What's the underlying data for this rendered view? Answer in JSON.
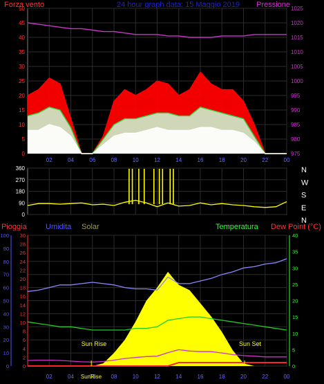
{
  "header": {
    "left_label": "Forza vento",
    "title": "24 hour graph data:  15 Maggio 2019",
    "right_label": "Pressione"
  },
  "colors": {
    "background": "#000000",
    "grid": "#2c2c2c",
    "frame": "#7f7f7f",
    "wind_speed": "#ff0000",
    "wind_avg": "#33cc33",
    "wind_gust": "#ffffff",
    "wind_low": "#cceecc",
    "pressure": "#cc33cc",
    "wind_dir": "#ffff00",
    "rain": "#ff2222",
    "humidity": "#8888ff",
    "solar": "#ffff00",
    "temperature": "#22cc22",
    "dewpoint": "#cc33cc",
    "label_red": "#ff3333",
    "label_blue": "#5555ff",
    "label_green": "#33ff33",
    "label_pressure": "#cc33cc",
    "label_solar": "#999966"
  },
  "chart_data": [
    {
      "type": "line",
      "title": "24 hour graph data:  15 Maggio 2019",
      "xlabel": "",
      "x_tick_labels": [
        "02",
        "04",
        "06",
        "08",
        "10",
        "12",
        "14",
        "16",
        "18",
        "20",
        "22",
        "00"
      ],
      "y_left_label": "Forza vento",
      "y_left_ticks": [
        0,
        5,
        10,
        15,
        20,
        25,
        30,
        35,
        40,
        45,
        50
      ],
      "ylim_left": [
        0,
        50
      ],
      "y_right_label": "Pressione",
      "y_right_ticks": [
        975,
        980,
        985,
        990,
        995,
        1000,
        1005,
        1010,
        1015,
        1020,
        1025
      ],
      "ylim_right": [
        975,
        1025
      ],
      "x_hours": [
        0,
        1,
        2,
        3,
        4,
        5,
        6,
        7,
        8,
        9,
        10,
        11,
        12,
        13,
        14,
        15,
        16,
        17,
        18,
        19,
        20,
        21,
        22,
        23,
        24
      ],
      "series": [
        {
          "name": "Forza vento",
          "axis": "left",
          "color_key": "wind_speed",
          "values": [
            20,
            22,
            26,
            24,
            12,
            0,
            0,
            6,
            18,
            22,
            20,
            22,
            25,
            24,
            20,
            22,
            28,
            24,
            22,
            22,
            18,
            10,
            0,
            0,
            0
          ]
        },
        {
          "name": "",
          "axis": "left",
          "color_key": "wind_avg",
          "values": [
            13,
            14,
            16,
            15,
            9,
            0,
            0,
            5,
            10,
            12,
            12,
            13,
            14,
            14,
            13,
            13,
            16,
            15,
            14,
            13,
            12,
            6,
            0,
            0,
            0
          ]
        },
        {
          "name": "",
          "axis": "left",
          "color_key": "wind_gust",
          "values": [
            8,
            8,
            10,
            9,
            6,
            0,
            0,
            3,
            6,
            7,
            7,
            8,
            9,
            8,
            8,
            8,
            9,
            9,
            8,
            8,
            7,
            4,
            0,
            0,
            0
          ]
        },
        {
          "name": "Pressione",
          "axis": "right",
          "color_key": "pressure",
          "values": [
            1020,
            1019.5,
            1019,
            1018.5,
            1018,
            1018,
            1017.5,
            1017,
            1017,
            1016.5,
            1016,
            1016,
            1016,
            1015.5,
            1015.5,
            1015,
            1015,
            1015,
            1015.5,
            1015.5,
            1015.5,
            1016,
            1016,
            1016,
            1016
          ]
        }
      ]
    },
    {
      "type": "line",
      "xlabel": "",
      "y_ticks": [
        0,
        90,
        180,
        270,
        360
      ],
      "ylim": [
        0,
        360
      ],
      "compass_labels": [
        "N",
        "W",
        "S",
        "E",
        "N"
      ],
      "x_hours": [
        0,
        1,
        2,
        3,
        4,
        5,
        6,
        7,
        8,
        9,
        10,
        11,
        12,
        13,
        14,
        15,
        16,
        17,
        18,
        19,
        20,
        21,
        22,
        23,
        24
      ],
      "series": [
        {
          "name": "",
          "color_key": "wind_dir",
          "values": [
            70,
            85,
            85,
            80,
            85,
            90,
            75,
            80,
            70,
            95,
            110,
            90,
            60,
            90,
            65,
            70,
            90,
            75,
            85,
            75,
            70,
            60,
            55,
            60,
            100
          ]
        }
      ],
      "spikes_hours": [
        9.4,
        9.7,
        10.3,
        10.8,
        11.7,
        12.2,
        12.5,
        13.2,
        13.5
      ]
    },
    {
      "type": "line",
      "xlabel": "",
      "x_tick_labels": [
        "02",
        "04",
        "06",
        "08",
        "10",
        "12",
        "14",
        "16",
        "18",
        "20",
        "22",
        "00"
      ],
      "y_axes": [
        {
          "label": "Umidita",
          "ticks": [
            0,
            10,
            20,
            30,
            40,
            50,
            60,
            70,
            80,
            90,
            100
          ],
          "ylim": [
            0,
            100
          ]
        },
        {
          "label": "Pioggia",
          "ticks": [
            0,
            2,
            4,
            6,
            8,
            10,
            12,
            14,
            16,
            18,
            20,
            22,
            24,
            26,
            28,
            30
          ],
          "ylim": [
            0,
            30
          ]
        },
        {
          "label": "Dew Point (°C)",
          "ticks": [
            0,
            5,
            10,
            15,
            20,
            25,
            30,
            35,
            40
          ],
          "ylim": [
            0,
            40
          ]
        }
      ],
      "labels": {
        "rain": "Pioggia",
        "humidity": "Umidita",
        "solar": "Solar",
        "temperature": "Temperatura",
        "dewpoint": "Dew Point (°C)",
        "sun_rise": "Sun Rise",
        "sun_set": "Sun Set",
        "sun_rise_axis": "SunRise"
      },
      "x_hours": [
        0,
        1,
        2,
        3,
        4,
        5,
        6,
        7,
        8,
        9,
        10,
        11,
        12,
        13,
        14,
        15,
        16,
        17,
        18,
        19,
        20,
        21,
        22,
        23,
        24
      ],
      "series": [
        {
          "name": "Umidita",
          "axis": "humidity",
          "color_key": "humidity",
          "values": [
            57,
            58,
            60,
            62,
            62,
            63,
            64,
            63,
            62,
            60,
            59,
            59,
            58,
            68,
            63,
            63,
            65,
            67,
            70,
            72,
            75,
            76,
            78,
            79,
            82
          ]
        },
        {
          "name": "Temperatura",
          "axis": "dewpoint",
          "color_key": "temperature",
          "values": [
            13.5,
            13,
            12.5,
            12,
            12,
            11.5,
            11,
            11,
            11,
            11,
            11.5,
            11.5,
            12,
            14,
            14.5,
            15,
            15,
            14.5,
            14,
            13.5,
            13,
            12.5,
            12,
            11.5,
            11
          ]
        },
        {
          "name": "Dew Point (°C)",
          "axis": "dewpoint",
          "color_key": "dewpoint",
          "values": [
            1.7,
            1.8,
            1.8,
            1.7,
            1.5,
            1.3,
            1.2,
            1.4,
            1.8,
            2.3,
            2.6,
            2.9,
            3.0,
            4.1,
            5.0,
            4.6,
            4.4,
            4.4,
            4.0,
            3.5,
            3.2,
            3.0,
            2.8,
            2.8,
            2.8
          ]
        },
        {
          "name": "Pioggia",
          "axis": "rain",
          "color_key": "rain",
          "values": [
            0,
            0,
            0,
            0,
            0,
            0,
            0,
            0,
            0,
            0,
            0,
            0,
            0,
            0,
            0.8,
            0.8,
            0.8,
            0.8,
            0.8,
            0.8,
            0.8,
            0.8,
            0.8,
            0.8,
            0.8
          ]
        },
        {
          "name": "Solar",
          "axis": "humidity",
          "color_key": "solar",
          "values": [
            0,
            0,
            0,
            0,
            0,
            0,
            0,
            2,
            10,
            20,
            34,
            50,
            60,
            72,
            62,
            58,
            48,
            38,
            26,
            12,
            2,
            0,
            0,
            0,
            0
          ]
        }
      ],
      "sun_rise_hour": 5.9,
      "sun_set_hour": 20.1
    }
  ]
}
